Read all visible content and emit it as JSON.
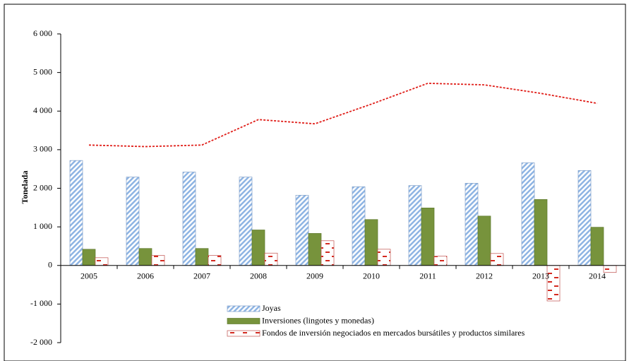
{
  "chart_data": {
    "type": "bar",
    "y_label": "Tonelada",
    "categories": [
      "2005",
      "2006",
      "2007",
      "2008",
      "2009",
      "2010",
      "2011",
      "2012",
      "2013",
      "2014"
    ],
    "series": [
      {
        "name": "Joyas",
        "color": "#8eb4e3",
        "pattern": "hatch",
        "values": [
          2720,
          2290,
          2420,
          2290,
          1820,
          2040,
          2070,
          2130,
          2660,
          2460
        ]
      },
      {
        "name": "Inversiones (lingotes y monedas)",
        "color": "#77933c",
        "pattern": "solid",
        "values": [
          420,
          440,
          440,
          920,
          830,
          1190,
          1490,
          1280,
          1710,
          990
        ]
      },
      {
        "name": "Fondos de inversión negociados en mercados bursátiles y productos similares",
        "color": "#d42a20",
        "pattern": "dash",
        "values": [
          200,
          260,
          260,
          320,
          640,
          420,
          240,
          310,
          -920,
          -180
        ]
      },
      {
        "type": "line",
        "color": "#e0201b",
        "values": [
          3120,
          3080,
          3120,
          3780,
          3670,
          4180,
          4720,
          4680,
          4460,
          4200
        ]
      }
    ],
    "ylim": [
      -2000,
      6000
    ],
    "yticks": [
      {
        "value": -2000,
        "label": "-2 000"
      },
      {
        "value": -1000,
        "label": "-1 000"
      },
      0,
      {
        "value": 1000,
        "label": "1 000"
      },
      {
        "value": 2000,
        "label": "2 000"
      },
      {
        "value": 3000,
        "label": "3 000"
      },
      {
        "value": 4000,
        "label": "4 000"
      },
      {
        "value": 5000,
        "label": "5 000"
      },
      {
        "value": 6000,
        "label": "6 000"
      }
    ]
  }
}
